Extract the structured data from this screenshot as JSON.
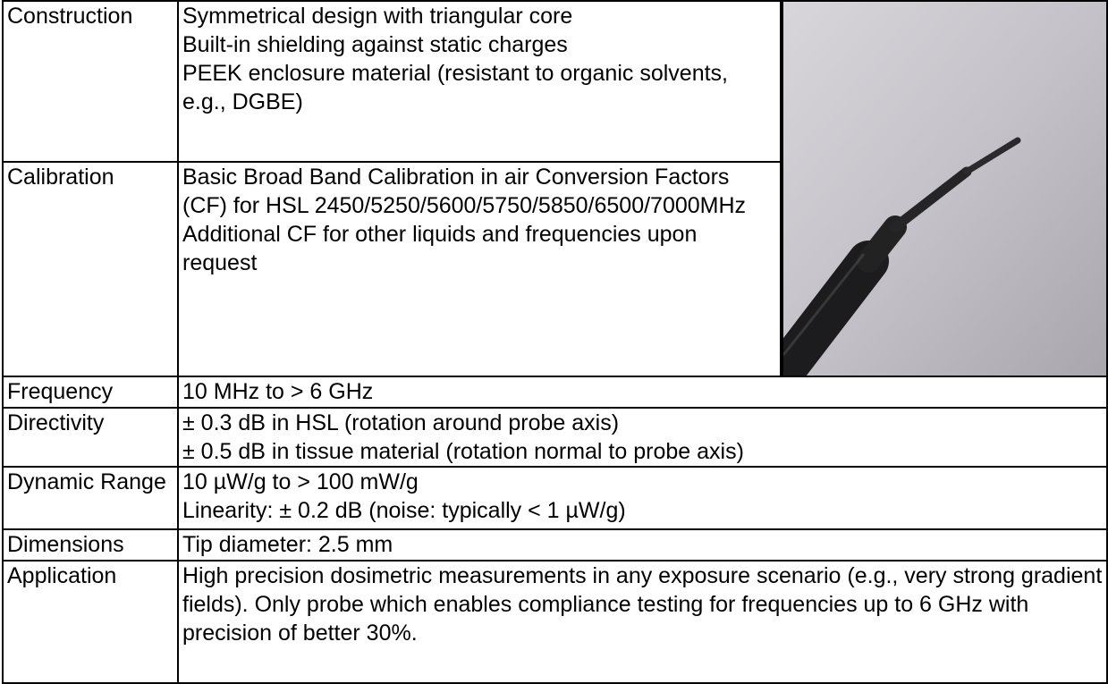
{
  "table": {
    "rows": [
      {
        "label": "Construction",
        "lines": [
          "Symmetrical design with triangular core",
          "Built-in shielding against static charges",
          "PEEK enclosure material (resistant to organic solvents, e.g., DGBE)"
        ]
      },
      {
        "label": "Calibration",
        "lines": [
          "Basic Broad Band Calibration in air Conversion Factors (CF) for HSL 2450/5250/5600/5750/5850/6500/7000MHz",
          "Additional CF for other liquids and frequencies upon request"
        ]
      },
      {
        "label": "Frequency",
        "lines": [
          "10 MHz to > 6 GHz"
        ]
      },
      {
        "label": "Directivity",
        "lines": [
          "± 0.3 dB in HSL (rotation around probe axis)",
          "± 0.5 dB in tissue material (rotation normal to probe axis)"
        ]
      },
      {
        "label": "Dynamic Range",
        "lines": [
          "10 µW/g to > 100 mW/g",
          "Linearity: ± 0.2 dB (noise: typically < 1 µW/g)"
        ]
      },
      {
        "label": "Dimensions",
        "lines": [
          "Tip diameter: 2.5 mm"
        ]
      },
      {
        "label": "Application",
        "lines": [
          "High precision dosimetric measurements in any exposure scenario (e.g., very strong gradient fields). Only probe which enables compliance testing for frequencies up to 6 GHz with precision of better 30%."
        ]
      }
    ]
  }
}
